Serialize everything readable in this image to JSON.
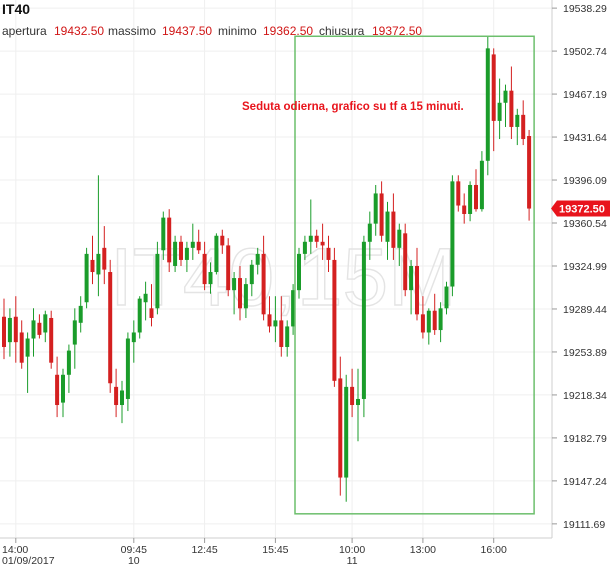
{
  "header": {
    "symbol": "IT40",
    "open_label": "apertura",
    "open_value": "19432.50",
    "high_label": "massimo",
    "high_value": "19437.50",
    "low_label": "minimo",
    "low_value": "19362.50",
    "close_label": "chiusura",
    "close_value": "19372.50"
  },
  "watermark": "IT40,15M",
  "annotation": "Seduta odierna, grafico su tf a 15 minuti.",
  "last_price_label": "19372.50",
  "colors": {
    "up": "#1a9c2a",
    "down": "#d42020",
    "highlight_box": "#6cbf6c",
    "last_price_bg": "#e8141c",
    "text_red": "#d01515"
  },
  "chart_data": {
    "type": "candlestick",
    "ylim": [
      19100,
      19545
    ],
    "y_ticks": [
      "19538.29",
      "19502.74",
      "19467.19",
      "19431.64",
      "19396.09",
      "19360.54",
      "19324.99",
      "19289.44",
      "19253.89",
      "19218.34",
      "19182.79",
      "19147.24",
      "19111.69"
    ],
    "x_ticks": [
      {
        "time": "14:00",
        "date": "01/09/2017",
        "index": 2
      },
      {
        "time": "09:45",
        "date": "10",
        "index": 22
      },
      {
        "time": "12:45",
        "date": "",
        "index": 34
      },
      {
        "time": "15:45",
        "date": "",
        "index": 46
      },
      {
        "time": "10:00",
        "date": "11",
        "index": 59
      },
      {
        "time": "13:00",
        "date": "",
        "index": 71
      },
      {
        "time": "16:00",
        "date": "",
        "index": 83
      }
    ],
    "last_price": 19372.5,
    "highlight": {
      "from_index": 50,
      "to_index": 89,
      "y_from": 19120,
      "y_to": 19515
    },
    "candles": [
      [
        19283,
        19298,
        19248,
        19258
      ],
      [
        19262,
        19290,
        19250,
        19282
      ],
      [
        19283,
        19300,
        19245,
        19262
      ],
      [
        19270,
        19280,
        19240,
        19245
      ],
      [
        19250,
        19270,
        19220,
        19265
      ],
      [
        19265,
        19290,
        19250,
        19280
      ],
      [
        19278,
        19285,
        19265,
        19268
      ],
      [
        19270,
        19288,
        19262,
        19285
      ],
      [
        19282,
        19288,
        19240,
        19245
      ],
      [
        19235,
        19250,
        19200,
        19210
      ],
      [
        19212,
        19240,
        19200,
        19235
      ],
      [
        19235,
        19260,
        19220,
        19255
      ],
      [
        19260,
        19290,
        19240,
        19280
      ],
      [
        19278,
        19300,
        19270,
        19292
      ],
      [
        19295,
        19340,
        19290,
        19335
      ],
      [
        19330,
        19350,
        19310,
        19320
      ],
      [
        19318,
        19400,
        19300,
        19335
      ],
      [
        19340,
        19358,
        19310,
        19322
      ],
      [
        19320,
        19330,
        19220,
        19228
      ],
      [
        19225,
        19240,
        19200,
        19210
      ],
      [
        19210,
        19230,
        19195,
        19222
      ],
      [
        19215,
        19270,
        19205,
        19265
      ],
      [
        19262,
        19280,
        19245,
        19270
      ],
      [
        19270,
        19300,
        19265,
        19298
      ],
      [
        19295,
        19312,
        19280,
        19302
      ],
      [
        19290,
        19310,
        19275,
        19282
      ],
      [
        19290,
        19345,
        19285,
        19335
      ],
      [
        19338,
        19370,
        19330,
        19365
      ],
      [
        19365,
        19372,
        19320,
        19328
      ],
      [
        19325,
        19350,
        19320,
        19345
      ],
      [
        19345,
        19350,
        19325,
        19330
      ],
      [
        19330,
        19345,
        19320,
        19340
      ],
      [
        19340,
        19360,
        19330,
        19345
      ],
      [
        19345,
        19355,
        19335,
        19338
      ],
      [
        19335,
        19345,
        19305,
        19310
      ],
      [
        19310,
        19328,
        19302,
        19320
      ],
      [
        19320,
        19352,
        19318,
        19350
      ],
      [
        19350,
        19355,
        19335,
        19342
      ],
      [
        19342,
        19348,
        19300,
        19305
      ],
      [
        19305,
        19320,
        19285,
        19315
      ],
      [
        19315,
        19325,
        19280,
        19290
      ],
      [
        19290,
        19315,
        19282,
        19310
      ],
      [
        19310,
        19330,
        19300,
        19326
      ],
      [
        19326,
        19340,
        19318,
        19335
      ],
      [
        19335,
        19350,
        19280,
        19285
      ],
      [
        19285,
        19300,
        19270,
        19275
      ],
      [
        19275,
        19300,
        19262,
        19280
      ],
      [
        19280,
        19300,
        19250,
        19258
      ],
      [
        19258,
        19280,
        19250,
        19275
      ],
      [
        19275,
        19310,
        19268,
        19305
      ],
      [
        19305,
        19340,
        19298,
        19335
      ],
      [
        19335,
        19350,
        19330,
        19345
      ],
      [
        19345,
        19380,
        19335,
        19350
      ],
      [
        19350,
        19355,
        19340,
        19345
      ],
      [
        19345,
        19360,
        19330,
        19342
      ],
      [
        19340,
        19350,
        19320,
        19330
      ],
      [
        19330,
        19340,
        19225,
        19230
      ],
      [
        19232,
        19250,
        19135,
        19150
      ],
      [
        19150,
        19235,
        19130,
        19225
      ],
      [
        19225,
        19240,
        19200,
        19210
      ],
      [
        19210,
        19240,
        19180,
        19215
      ],
      [
        19215,
        19350,
        19200,
        19345
      ],
      [
        19345,
        19370,
        19330,
        19360
      ],
      [
        19360,
        19392,
        19350,
        19385
      ],
      [
        19385,
        19395,
        19345,
        19350
      ],
      [
        19345,
        19378,
        19330,
        19370
      ],
      [
        19370,
        19385,
        19330,
        19340
      ],
      [
        19340,
        19360,
        19325,
        19355
      ],
      [
        19352,
        19360,
        19300,
        19305
      ],
      [
        19305,
        19330,
        19285,
        19325
      ],
      [
        19325,
        19340,
        19280,
        19285
      ],
      [
        19285,
        19300,
        19265,
        19270
      ],
      [
        19270,
        19290,
        19260,
        19288
      ],
      [
        19288,
        19302,
        19268,
        19272
      ],
      [
        19272,
        19295,
        19262,
        19290
      ],
      [
        19290,
        19312,
        19285,
        19308
      ],
      [
        19308,
        19400,
        19300,
        19395
      ],
      [
        19395,
        19400,
        19370,
        19375
      ],
      [
        19375,
        19385,
        19360,
        19368
      ],
      [
        19368,
        19395,
        19362,
        19392
      ],
      [
        19392,
        19405,
        19370,
        19372
      ],
      [
        19372,
        19420,
        19370,
        19412
      ],
      [
        19412,
        19515,
        19400,
        19505
      ],
      [
        19500,
        19505,
        19420,
        19445
      ],
      [
        19445,
        19480,
        19430,
        19460
      ],
      [
        19460,
        19475,
        19440,
        19470
      ],
      [
        19470,
        19490,
        19430,
        19440
      ],
      [
        19440,
        19455,
        19425,
        19450
      ],
      [
        19450,
        19462,
        19425,
        19430
      ],
      [
        19432.5,
        19437.5,
        19362.5,
        19372.5
      ]
    ]
  }
}
